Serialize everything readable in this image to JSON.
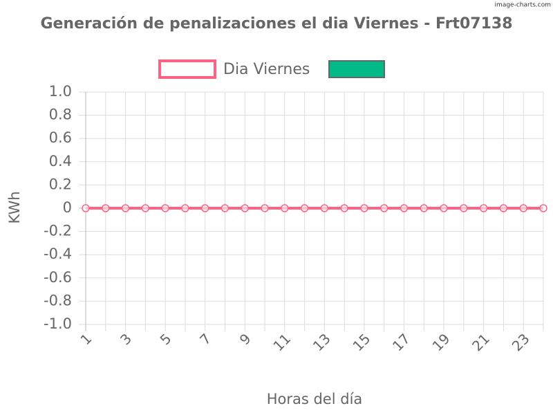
{
  "watermark": "image-charts.com",
  "chart_data": {
    "type": "line",
    "title": "Generación de penalizaciones el dia Viernes - Frt07138",
    "x_label": "Horas del día",
    "y_label": "KWh",
    "categories": [
      "1",
      null,
      "3",
      null,
      "5",
      null,
      "7",
      null,
      "9",
      null,
      "11",
      null,
      "13",
      null,
      "15",
      null,
      "17",
      null,
      "19",
      null,
      "21",
      null,
      "23",
      null
    ],
    "series": [
      {
        "name": "Dia Viernes",
        "color": "#ff6384",
        "values": [
          0,
          0,
          0,
          0,
          0,
          0,
          0,
          0,
          0,
          0,
          0,
          0,
          0,
          0,
          0,
          0,
          0,
          0,
          0,
          0,
          0,
          0,
          0,
          0
        ]
      },
      {
        "color": "#00bb88"
      }
    ],
    "ylim": [
      -1,
      1
    ],
    "yticks": [
      {
        "value": -1,
        "label": "-1.0"
      },
      -0.8,
      -0.6,
      -0.4,
      -0.2,
      0,
      0.2,
      0.4,
      0.6,
      0.8,
      {
        "value": 1,
        "label": "1.0"
      }
    ],
    "grid": true,
    "legend": "top"
  }
}
